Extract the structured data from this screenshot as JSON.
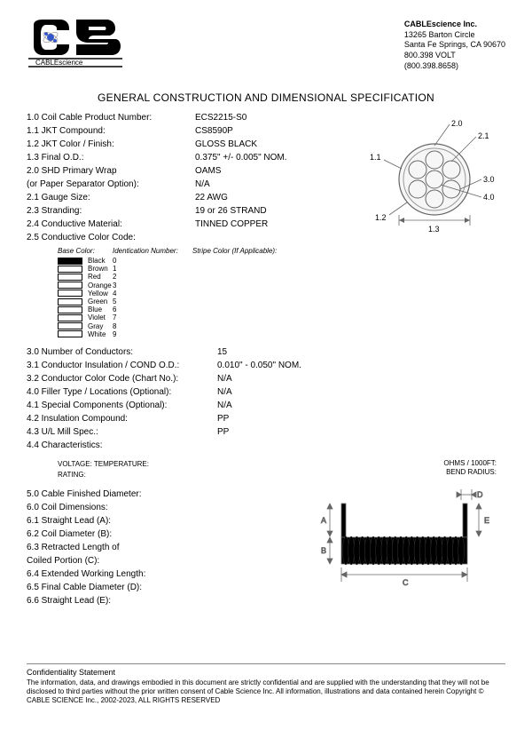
{
  "company": {
    "name": "CABLEscience Inc.",
    "addr1": "13265 Barton Circle",
    "addr2": "Santa Fe Springs, CA 90670",
    "phone1": "800.398 VOLT",
    "phone2": "(800.398.8658)",
    "logo_text": "CABLEscience"
  },
  "title": "GENERAL CONSTRUCTION AND DIMENSIONAL SPECIFICATION",
  "specs1": [
    {
      "label": "1.0 Coil Cable Product Number:",
      "value": "ECS2215-S0"
    },
    {
      "label": "1.1 JKT Compound:",
      "value": "CS8590P"
    },
    {
      "label": "1.2 JKT Color / Finish:",
      "value": "GLOSS BLACK"
    },
    {
      "label": "1.3 Final O.D.:",
      "value": "0.375\" +/- 0.005\" NOM."
    },
    {
      "label": "2.0 SHD Primary Wrap",
      "value": "OAMS"
    },
    {
      "label": "(or Paper Separator Option):",
      "value": "N/A"
    },
    {
      "label": "2.1 Gauge Size:",
      "value": "22 AWG"
    },
    {
      "label": "2.3 Stranding:",
      "value": "19 or 26 STRAND"
    },
    {
      "label": "2.4 Conductive Material:",
      "value": "TINNED COPPER"
    },
    {
      "label": "2.5 Conductive Color Code:",
      "value": ""
    }
  ],
  "color_table": {
    "head": {
      "c1": "Base Color:",
      "c2": "Identication Number:",
      "c3": "Stripe Color (If Applicable):"
    },
    "rows": [
      {
        "name": "Black",
        "num": "0",
        "filled": true
      },
      {
        "name": "Brown",
        "num": "1",
        "filled": false
      },
      {
        "name": "Red",
        "num": "2",
        "filled": false
      },
      {
        "name": "Orange",
        "num": "3",
        "filled": false
      },
      {
        "name": "Yellow",
        "num": "4",
        "filled": false
      },
      {
        "name": "Green",
        "num": "5",
        "filled": false
      },
      {
        "name": "Blue",
        "num": "6",
        "filled": false
      },
      {
        "name": "Violet",
        "num": "7",
        "filled": false
      },
      {
        "name": "Gray",
        "num": "8",
        "filled": false
      },
      {
        "name": "White",
        "num": "9",
        "filled": false
      }
    ]
  },
  "specs2": [
    {
      "label": "3.0 Number of Conductors:",
      "value": "15"
    },
    {
      "label": "3.1 Conductor Insulation / COND O.D.:",
      "value": "0.010\" - 0.050\" NOM."
    },
    {
      "label": "3.2 Conductor Color Code (Chart No.):",
      "value": "N/A"
    },
    {
      "label": "4.0 Filler Type / Locations (Optional):",
      "value": "N/A"
    },
    {
      "label": "4.1 Special Components (Optional):",
      "value": "N/A"
    },
    {
      "label": "4.2 Insulation Compound:",
      "value": "PP"
    },
    {
      "label": "4.3 U/L Mill Spec.:",
      "value": "PP"
    },
    {
      "label": "4.4 Characteristics:",
      "value": ""
    }
  ],
  "char": {
    "l1": "VOLTAGE: TEMPERATURE:",
    "l2": "RATING:"
  },
  "ohms": {
    "l1": "OHMS / 1000FT:",
    "l2": "BEND RADIUS:"
  },
  "specs3": [
    "5.0 Cable Finished Diameter:",
    "6.0 Coil Dimensions:",
    "6.1 Straight Lead (A):",
    "6.2 Coil Diameter (B):",
    "6.3 Retracted Length of",
    "Coiled Portion (C):",
    "6.4 Extended Working Length:",
    "6.5 Final Cable Diameter (D):",
    "6.6 Straight Lead (E):"
  ],
  "cross_labels": {
    "a": "2.0",
    "b": "2.1",
    "c": "3.0",
    "d": "4.0",
    "e": "1.1",
    "f": "1.2",
    "g": "1.3"
  },
  "coil_dim": {
    "a": "A",
    "b": "B",
    "c": "C",
    "d": "D",
    "e": "E"
  },
  "footer": {
    "title": "Confidentiality Statement",
    "text": "The information, data, and drawings embodied in this document are strictly confidential and are supplied with the understanding that they will not be disclosed to third parties without the prior written consent of Cable Science Inc. All information, illustrations and data contained herein Copyright © CABLE SCIENCE Inc., 2002-2023, ALL RIGHTS RESERVED"
  },
  "colors": {
    "black": "#000000",
    "gray": "#888888",
    "blue": "#3355cc"
  }
}
